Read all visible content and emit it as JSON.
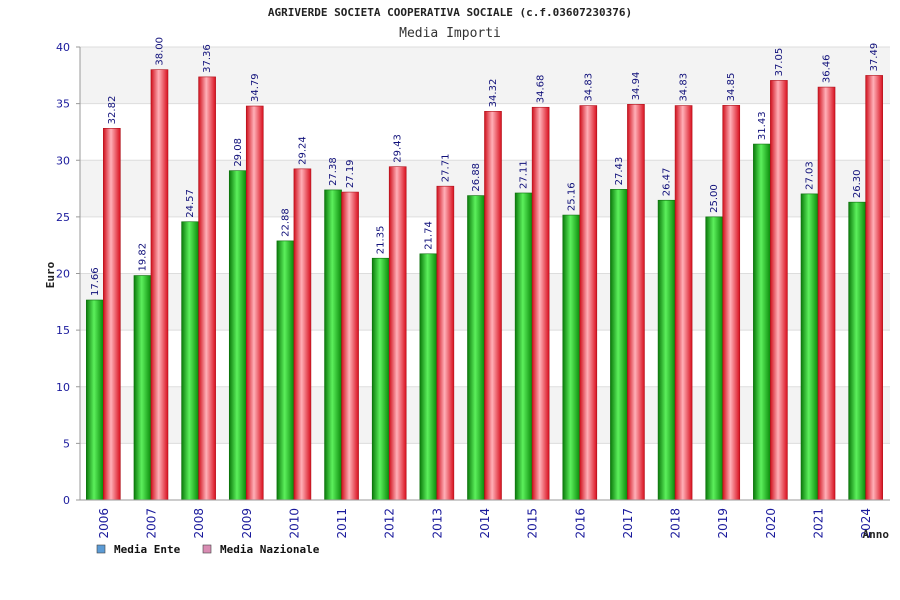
{
  "chart_data": {
    "type": "bar",
    "title": "AGRIVERDE SOCIETA COOPERATIVA SOCIALE (c.f.03607230376)",
    "subtitle": "Media Importi",
    "xlabel": "Anno",
    "ylabel": "Euro",
    "ylim": [
      0,
      40
    ],
    "yticks": [
      0,
      5,
      10,
      15,
      20,
      25,
      30,
      35,
      40
    ],
    "grid": true,
    "legend_position": "bottom-left",
    "categories": [
      "2006",
      "2007",
      "2008",
      "2009",
      "2010",
      "2011",
      "2012",
      "2013",
      "2014",
      "2015",
      "2016",
      "2017",
      "2018",
      "2019",
      "2020",
      "2021",
      "2024"
    ],
    "series": [
      {
        "name": "Media Ente",
        "legend_color": "#5b9bd5",
        "bar_color": "#1aa61a",
        "values": [
          17.66,
          19.82,
          24.57,
          29.08,
          22.88,
          27.38,
          21.35,
          21.74,
          26.88,
          27.11,
          25.16,
          27.43,
          26.47,
          25.0,
          31.43,
          27.03,
          26.3
        ],
        "labels": [
          "17.66",
          "19.82",
          "24.57",
          "29.08",
          "22.88",
          "27.38",
          "21.35",
          "21.74",
          "26.88",
          "27.11",
          "25.16",
          "27.43",
          "26.47",
          "25.00",
          "31.43",
          "27.03",
          "26.30"
        ]
      },
      {
        "name": "Media Nazionale",
        "legend_color": "#d98cb3",
        "bar_color": "#e8242f",
        "values": [
          32.82,
          38.0,
          37.36,
          34.79,
          29.24,
          27.19,
          29.43,
          27.71,
          34.32,
          34.68,
          34.83,
          34.94,
          34.83,
          34.85,
          37.05,
          36.46,
          37.49
        ],
        "labels": [
          "32.82",
          "38.00",
          "37.36",
          "34.79",
          "29.24",
          "27.19",
          "29.43",
          "27.71",
          "34.32",
          "34.68",
          "34.83",
          "34.94",
          "34.83",
          "34.85",
          "37.05",
          "36.46",
          "37.49"
        ]
      }
    ]
  }
}
